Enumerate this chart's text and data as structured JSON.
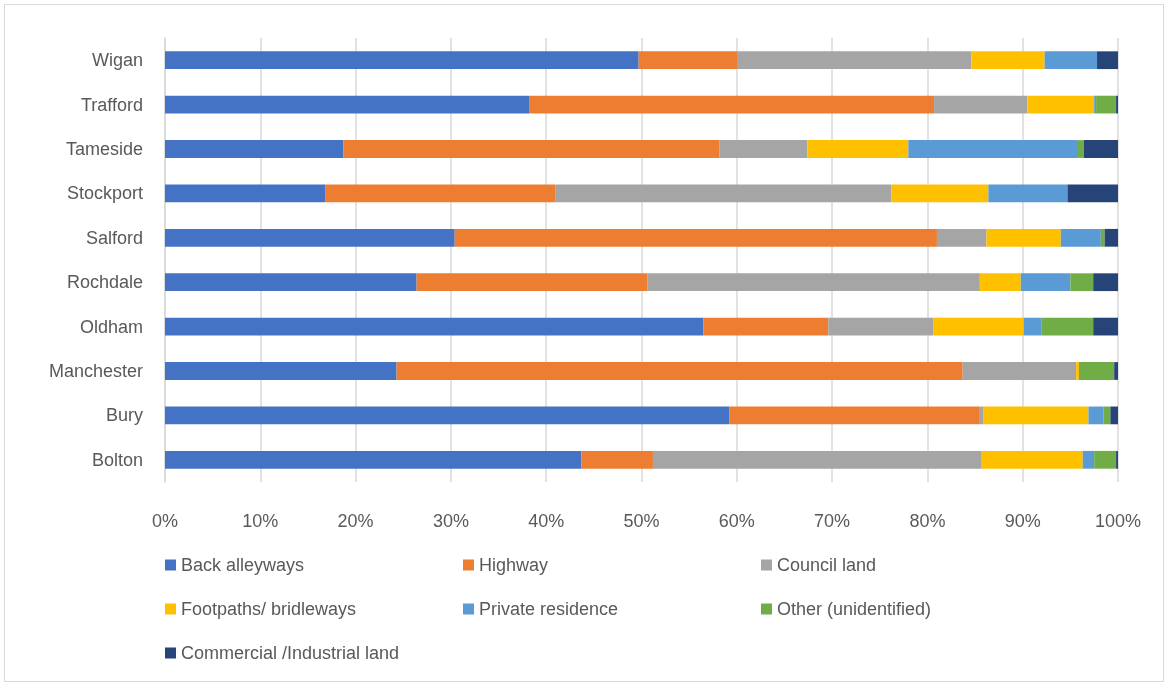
{
  "chart_data": {
    "type": "bar",
    "orientation": "horizontal",
    "stacked": true,
    "categories": [
      "Wigan",
      "Trafford",
      "Tameside",
      "Stockport",
      "Salford",
      "Rochdale",
      "Oldham",
      "Manchester",
      "Bury",
      "Bolton"
    ],
    "series": [
      {
        "name": "Back alleyways",
        "color": "#4472c4",
        "values": [
          49.7,
          38.2,
          18.7,
          16.8,
          30.4,
          26.4,
          56.5,
          24.3,
          59.2,
          43.7
        ]
      },
      {
        "name": "Highway",
        "color": "#ed7d31",
        "values": [
          10.4,
          42.5,
          39.5,
          24.2,
          50.6,
          24.2,
          13.1,
          59.4,
          26.3,
          7.5
        ]
      },
      {
        "name": "Council land",
        "color": "#a5a5a5",
        "values": [
          24.5,
          9.8,
          9.2,
          35.2,
          5.2,
          34.9,
          11.0,
          11.9,
          0.4,
          34.5
        ]
      },
      {
        "name": "Footpaths/ bridleways",
        "color": "#ffc000",
        "values": [
          7.7,
          7.0,
          10.6,
          10.2,
          7.8,
          4.3,
          9.5,
          0.3,
          11.0,
          10.6
        ]
      },
      {
        "name": "Private residence",
        "color": "#5b9bd5",
        "values": [
          5.5,
          0.2,
          17.7,
          8.3,
          4.2,
          5.2,
          1.9,
          0,
          1.6,
          1.2
        ]
      },
      {
        "name": "Other (unidentified)",
        "color": "#70ad47",
        "values": [
          0,
          2.1,
          0.7,
          0,
          0.4,
          2.4,
          5.4,
          3.7,
          0.7,
          2.3
        ]
      },
      {
        "name": "Commercial /Industrial land",
        "color": "#264478",
        "values": [
          2.2,
          0.2,
          3.6,
          5.3,
          1.4,
          2.6,
          2.6,
          0.4,
          0.8,
          0.2
        ]
      }
    ],
    "xlim": [
      0,
      100
    ],
    "xticks": [
      {
        "value": 0,
        "label": "0%"
      },
      {
        "value": 10,
        "label": "10%"
      },
      {
        "value": 20,
        "label": "20%"
      },
      {
        "value": 30,
        "label": "30%"
      },
      {
        "value": 40,
        "label": "40%"
      },
      {
        "value": 50,
        "label": "50%"
      },
      {
        "value": 60,
        "label": "60%"
      },
      {
        "value": 70,
        "label": "70%"
      },
      {
        "value": 80,
        "label": "80%"
      },
      {
        "value": 90,
        "label": "90%"
      },
      {
        "value": 100,
        "label": "100%"
      }
    ],
    "grid": "x",
    "legend": "bottom"
  }
}
